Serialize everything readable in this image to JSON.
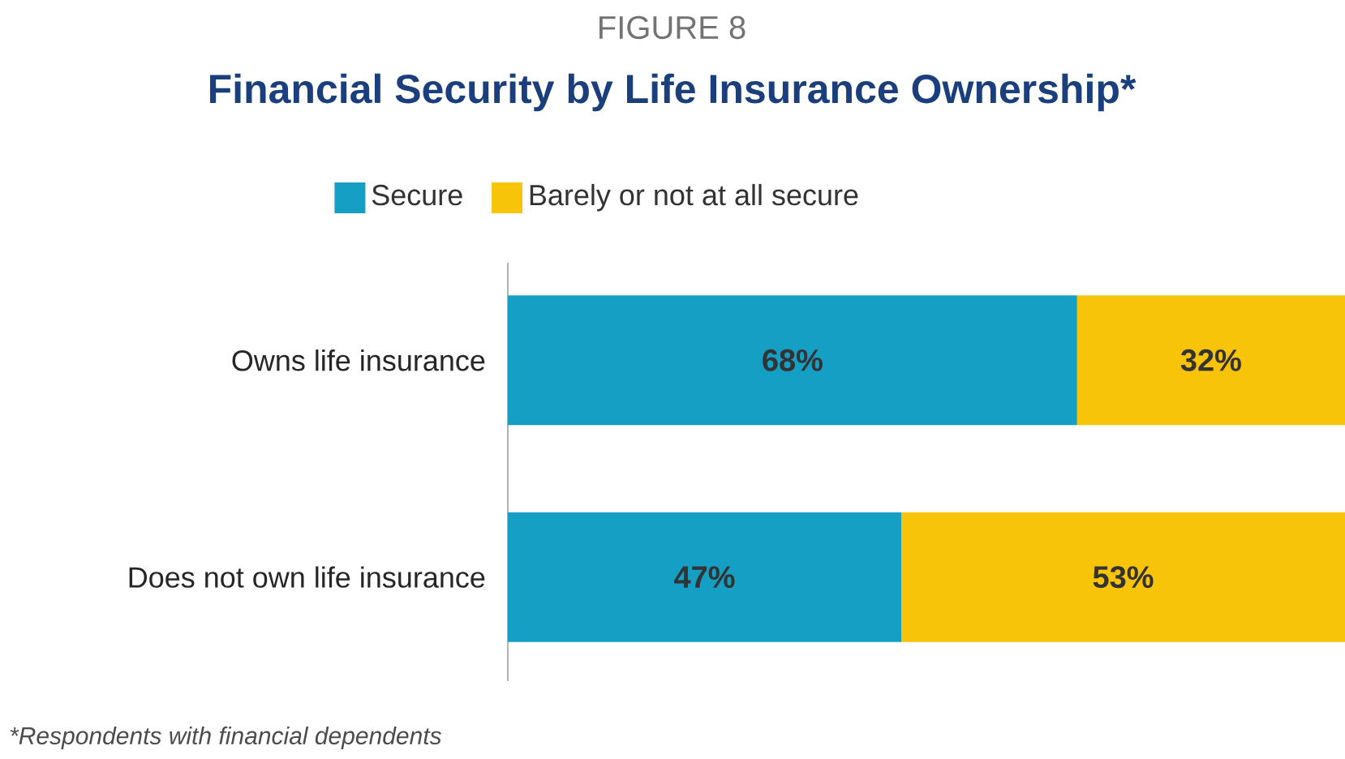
{
  "chart_data": {
    "type": "bar",
    "orientation": "horizontal",
    "stacked": true,
    "subtitle": "FIGURE 8",
    "title": "Financial Security by Life Insurance Ownership*",
    "categories": [
      "Owns life insurance",
      "Does not own life insurance"
    ],
    "series": [
      {
        "name": "Secure",
        "color": "#159fc4",
        "values": [
          68,
          47
        ],
        "value_labels": [
          "68%",
          "47%"
        ]
      },
      {
        "name": "Barely or not at all secure",
        "color": "#f7c40a",
        "values": [
          32,
          53
        ],
        "value_labels": [
          "32%",
          "53%"
        ]
      }
    ],
    "xlim": [
      0,
      100
    ],
    "tick_labels": "y",
    "legend": "top",
    "grid": false,
    "annotations": [
      "*Respondents with financial dependents"
    ]
  }
}
